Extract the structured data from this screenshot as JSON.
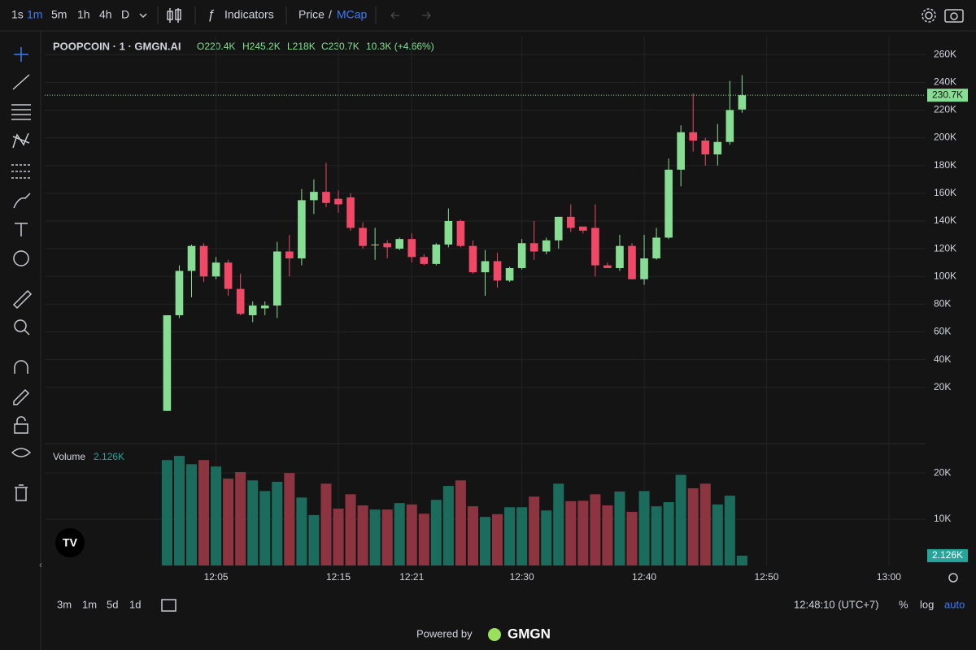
{
  "toolbar": {
    "intervals": [
      "1s",
      "1m",
      "5m",
      "1h",
      "4h",
      "D"
    ],
    "indicators": "Indicators",
    "price": "Price",
    "slash": "/",
    "mcap": "MCap"
  },
  "bottom_bar": {
    "ranges": [
      "3m",
      "1m",
      "5d",
      "1d"
    ],
    "clock": "12:48:10 (UTC+7)",
    "percent": "%",
    "log": "log",
    "auto": "auto"
  },
  "footer": {
    "powered": "Powered by",
    "brand": "GMGN"
  },
  "chart_data": {
    "type": "candlestick",
    "title": "POOPCOIN · 1 · GMGN.AI",
    "ohlc_labels": [
      "O220.4K",
      "H245.2K",
      "L218K",
      "C230.7K",
      "10.3K (+4.66%)"
    ],
    "volume_title": "Volume",
    "volume_label": "2.126K",
    "last_price_label": "230.7K",
    "up_color": "#86dd93",
    "down_color": "#f04866",
    "volume_up_color": "#1b6c5c",
    "volume_down_color": "#8c3541",
    "x": [
      "12:01",
      "12:02",
      "12:03",
      "12:04",
      "12:05",
      "12:06",
      "12:07",
      "12:08",
      "12:09",
      "12:10",
      "12:11",
      "12:12",
      "12:13",
      "12:14",
      "12:15",
      "12:16",
      "12:17",
      "12:18",
      "12:19",
      "12:20",
      "12:21",
      "12:22",
      "12:23",
      "12:24",
      "12:25",
      "12:26",
      "12:27",
      "12:28",
      "12:29",
      "12:30",
      "12:31",
      "12:32",
      "12:33",
      "12:34",
      "12:35",
      "12:36",
      "12:37",
      "12:38",
      "12:39",
      "12:40",
      "12:41",
      "12:42",
      "12:43",
      "12:44",
      "12:45",
      "12:46",
      "12:47",
      "12:48"
    ],
    "open": [
      3000,
      72000,
      104000,
      122000,
      100000,
      110000,
      91000,
      72000,
      77000,
      79000,
      118000,
      113000,
      155000,
      161000,
      156000,
      157000,
      135000,
      123000,
      124000,
      120000,
      127000,
      114000,
      109000,
      123000,
      140000,
      122000,
      103000,
      111000,
      97000,
      106000,
      124000,
      118000,
      126000,
      143000,
      136000,
      135000,
      108000,
      106000,
      122000,
      98000,
      113000,
      128000,
      177000,
      204000,
      198000,
      188000,
      197000,
      220400
    ],
    "high": [
      72000,
      108000,
      123000,
      124000,
      114000,
      112000,
      102000,
      82000,
      82000,
      125000,
      130000,
      163000,
      170000,
      182000,
      162000,
      160000,
      139000,
      135000,
      126000,
      128000,
      131000,
      116000,
      124000,
      149000,
      141000,
      126000,
      119000,
      117000,
      107000,
      127000,
      140000,
      128000,
      143000,
      152000,
      136000,
      152000,
      110000,
      130000,
      124000,
      130000,
      135000,
      185000,
      209000,
      232000,
      200000,
      210000,
      241000,
      245200
    ],
    "low": [
      3000,
      70000,
      85000,
      96000,
      98000,
      86000,
      72000,
      67000,
      72000,
      70000,
      100000,
      108000,
      145000,
      150000,
      146000,
      133000,
      120000,
      112000,
      113000,
      119000,
      110000,
      108000,
      108000,
      121000,
      121000,
      102000,
      86000,
      92000,
      96000,
      105000,
      112000,
      116000,
      120000,
      132000,
      131000,
      100000,
      106000,
      104000,
      98000,
      94000,
      112000,
      127000,
      165000,
      190000,
      180000,
      180000,
      195000,
      218000
    ],
    "close": [
      72000,
      104000,
      122000,
      100000,
      110000,
      91000,
      73000,
      79000,
      79000,
      118000,
      113000,
      155000,
      161000,
      153000,
      152000,
      135000,
      122000,
      123000,
      121000,
      127000,
      114000,
      109000,
      123000,
      140000,
      122000,
      103000,
      111000,
      97000,
      106000,
      124000,
      118000,
      126000,
      143000,
      135000,
      133000,
      108000,
      106000,
      122000,
      98000,
      113000,
      128000,
      177000,
      204000,
      198000,
      188000,
      197000,
      220000,
      230700
    ],
    "volume": [
      22800,
      23700,
      21900,
      22800,
      21400,
      18800,
      20200,
      18400,
      16100,
      18100,
      20000,
      14700,
      10900,
      17700,
      12300,
      15400,
      13000,
      12100,
      12100,
      13500,
      13200,
      11200,
      14200,
      17200,
      18400,
      12800,
      10500,
      11100,
      12600,
      12600,
      14900,
      11900,
      17700,
      13900,
      14000,
      15400,
      13000,
      16000,
      11600,
      16100,
      12800,
      13700,
      19600,
      16700,
      17700,
      13200,
      15100,
      2126
    ],
    "xlim": [
      "11:51",
      "13:03"
    ],
    "xticks": [
      "12:05",
      "12:15",
      "12:21",
      "12:30",
      "12:40",
      "12:50",
      "13:00"
    ],
    "ylim": [
      -20000,
      273000
    ],
    "yticks": [
      {
        "value": 20000,
        "label": "20K"
      },
      {
        "value": 40000,
        "label": "40K"
      },
      {
        "value": 60000,
        "label": "60K"
      },
      {
        "value": 80000,
        "label": "80K"
      },
      {
        "value": 100000,
        "label": "100K"
      },
      {
        "value": 120000,
        "label": "120K"
      },
      {
        "value": 140000,
        "label": "140K"
      },
      {
        "value": 160000,
        "label": "160K"
      },
      {
        "value": 180000,
        "label": "180K"
      },
      {
        "value": 200000,
        "label": "200K"
      },
      {
        "value": 220000,
        "label": "220K"
      },
      {
        "value": 240000,
        "label": "240K"
      },
      {
        "value": 260000,
        "label": "260K"
      }
    ],
    "volume_ylim": [
      0,
      26000
    ],
    "volume_yticks": [
      {
        "value": 10000,
        "label": "10K"
      },
      {
        "value": 20000,
        "label": "20K"
      }
    ],
    "grid": true
  }
}
